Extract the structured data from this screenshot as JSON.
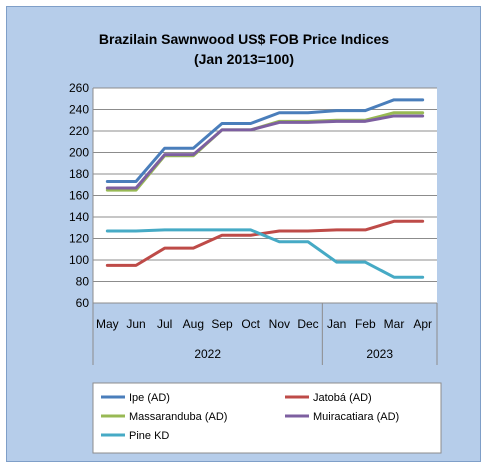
{
  "chart_data": {
    "type": "line",
    "title": "Brazilain Sawnwood US$ FOB Price Indices",
    "subtitle": "(Jan 2013=100)",
    "categories": [
      "May",
      "Jun",
      "Jul",
      "Aug",
      "Sep",
      "Oct",
      "Nov",
      "Dec",
      "Jan",
      "Feb",
      "Mar",
      "Apr"
    ],
    "groups": [
      {
        "label": "2022",
        "start": 0,
        "end": 7
      },
      {
        "label": "2023",
        "start": 8,
        "end": 11
      }
    ],
    "ylim": [
      60,
      260
    ],
    "yticks": [
      60,
      80,
      100,
      120,
      140,
      160,
      180,
      200,
      220,
      240,
      260
    ],
    "grid": true,
    "legend": "bottom",
    "series": [
      {
        "name": "Ipe (AD)",
        "color": "#4a7ebb",
        "values": [
          173,
          173,
          204,
          204,
          227,
          227,
          237,
          237,
          239,
          239,
          249,
          249
        ]
      },
      {
        "name": "Jatobá (AD)",
        "color": "#be4b48",
        "values": [
          95,
          95,
          111,
          111,
          123,
          123,
          127,
          127,
          128,
          128,
          136,
          136
        ]
      },
      {
        "name": "Massaranduba (AD)",
        "color": "#98b954",
        "values": [
          165,
          165,
          197,
          197,
          221,
          221,
          229,
          229,
          230,
          230,
          237,
          237
        ]
      },
      {
        "name": "Muiracatiara (AD)",
        "color": "#7d5fa0",
        "values": [
          167,
          167,
          198,
          198,
          221,
          221,
          228,
          228,
          229,
          229,
          234,
          234
        ]
      },
      {
        "name": "Pine KD",
        "color": "#46aac5",
        "values": [
          127,
          127,
          128,
          128,
          128,
          128,
          117,
          117,
          98,
          98,
          84,
          84
        ]
      }
    ]
  }
}
